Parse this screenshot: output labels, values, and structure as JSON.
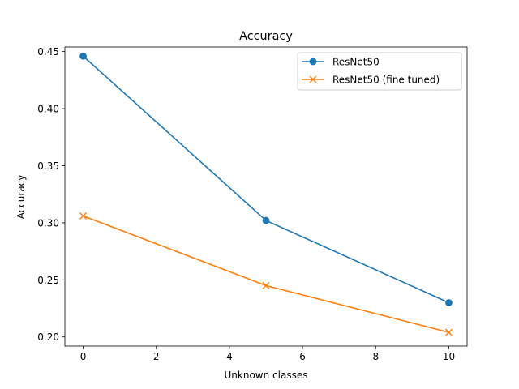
{
  "chart_data": {
    "type": "line",
    "title": "Accuracy",
    "xlabel": "Unknown classes",
    "ylabel": "Accuracy",
    "xlim": [
      -0.5,
      10.5
    ],
    "ylim": [
      0.192,
      0.454
    ],
    "xticks": [
      0,
      2,
      4,
      6,
      8,
      10
    ],
    "yticks": [
      0.2,
      0.25,
      0.3,
      0.35,
      0.4,
      0.45
    ],
    "ytick_labels": [
      "0.20",
      "0.25",
      "0.30",
      "0.35",
      "0.40",
      "0.45"
    ],
    "grid": false,
    "legend_position": "top-right",
    "series": [
      {
        "name": "ResNet50",
        "marker": "circle",
        "color": "#1f77b4",
        "x": [
          0,
          5,
          10
        ],
        "y": [
          0.446,
          0.302,
          0.23
        ]
      },
      {
        "name": "ResNet50 (fine tuned)",
        "marker": "x",
        "color": "#ff7f0e",
        "x": [
          0,
          5,
          10
        ],
        "y": [
          0.306,
          0.245,
          0.204
        ]
      }
    ]
  }
}
